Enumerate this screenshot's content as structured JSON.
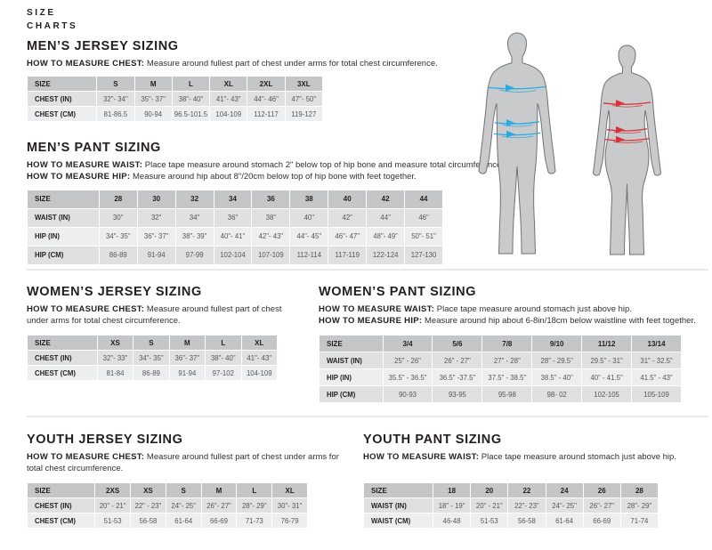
{
  "page": {
    "eyebrow_line1": "SIZE",
    "eyebrow_line2": "CHARTS"
  },
  "colors": {
    "table_header_bg": "#c5c6c8",
    "row_odd_bg": "#dfe0e2",
    "row_even_bg": "#edeeef",
    "silhouette_fill": "#c9cacc",
    "silhouette_stroke": "#717275",
    "male_arrow": "#29abe2",
    "female_arrow": "#d6333a",
    "divider": "#e8e9ea"
  },
  "figures": {
    "male_icon": "male-body-silhouette",
    "female_icon": "female-body-silhouette",
    "male_measure_lines": [
      "chest",
      "waist",
      "hip"
    ],
    "female_measure_lines": [
      "chest",
      "waist",
      "hip"
    ]
  },
  "sections": {
    "mens_jersey": {
      "heading": "MEN’S JERSEY SIZING",
      "howto": [
        {
          "label": "HOW TO MEASURE CHEST:",
          "text": "Measure around fullest part of chest under arms for total chest circumference."
        }
      ],
      "table": {
        "header": [
          "SIZE",
          "S",
          "M",
          "L",
          "XL",
          "2XL",
          "3XL"
        ],
        "rows": [
          [
            "CHEST (IN)",
            "32\"- 34\"",
            "35\"- 37\"",
            "38\"- 40\"",
            "41\"- 43\"",
            "44\"- 46\"",
            "47\"- 50\""
          ],
          [
            "CHEST (CM)",
            "81-86.5",
            "90-94",
            "96.5-101.5",
            "104-109",
            "112-117",
            "119-127"
          ]
        ]
      }
    },
    "mens_pant": {
      "heading": "MEN’S PANT SIZING",
      "howto": [
        {
          "label": "HOW TO MEASURE WAIST:",
          "text": "Place tape measure around stomach 2\" below top of hip bone and measure total circumference."
        },
        {
          "label": "HOW TO MEASURE HIP:",
          "text": "Measure around hip about 8\"/20cm below top of hip bone with feet together."
        }
      ],
      "table": {
        "header": [
          "SIZE",
          "28",
          "30",
          "32",
          "34",
          "36",
          "38",
          "40",
          "42",
          "44"
        ],
        "rows": [
          [
            "WAIST (IN)",
            "30\"",
            "32\"",
            "34\"",
            "36\"",
            "38\"",
            "40\"",
            "42\"",
            "44\"",
            "46\""
          ],
          [
            "HIP (IN)",
            "34\"- 35\"",
            "36\"- 37\"",
            "38\"- 39\"",
            "40\"- 41\"",
            "42\"- 43\"",
            "44\"- 45\"",
            "46\"- 47\"",
            "48\"- 49\"",
            "50\"- 51\""
          ],
          [
            "HIP (CM)",
            "86-89",
            "91-94",
            "97-99",
            "102-104",
            "107-109",
            "112-114",
            "117-119",
            "122-124",
            "127-130"
          ]
        ]
      }
    },
    "womens_jersey": {
      "heading": "WOMEN’S JERSEY SIZING",
      "howto": [
        {
          "label": "HOW TO MEASURE CHEST:",
          "text": "Measure around fullest part of chest under arms for total chest circumference."
        }
      ],
      "table": {
        "header": [
          "SIZE",
          "XS",
          "S",
          "M",
          "L",
          "XL"
        ],
        "rows": [
          [
            "CHEST (IN)",
            "32\"- 33\"",
            "34\"- 35\"",
            "36\"- 37\"",
            "38\"- 40\"",
            "41\"- 43\""
          ],
          [
            "CHEST (CM)",
            "81-84",
            "86-89",
            "91-94",
            "97-102",
            "104-109"
          ]
        ]
      }
    },
    "womens_pant": {
      "heading": "WOMEN’S PANT SIZING",
      "howto": [
        {
          "label": "HOW TO MEASURE WAIST:",
          "text": "Place tape measure around stomach just above hip."
        },
        {
          "label": "HOW TO MEASURE HIP:",
          "text": "Measure around hip about 6-8in/18cm below waistline with feet together."
        }
      ],
      "table": {
        "header": [
          "SIZE",
          "3/4",
          "5/6",
          "7/8",
          "9/10",
          "11/12",
          "13/14"
        ],
        "rows": [
          [
            "WAIST (IN)",
            "25\" - 26\"",
            "26\" - 27\"",
            "27\" - 28\"",
            "28\" - 29.5\"",
            "29.5\" - 31\"",
            "31\" - 32.5\""
          ],
          [
            "HIP (IN)",
            "35.5\" - 36.5\"",
            "36.5\" -37.5\"",
            "37.5\" - 38.5\"",
            "38.5\" - 40\"",
            "40\" - 41.5\"",
            "41.5\" - 43\""
          ],
          [
            "HIP (CM)",
            "90-93",
            "93-95",
            "95-98",
            "98- 02",
            "102-105",
            "105-109"
          ]
        ]
      }
    },
    "youth_jersey": {
      "heading": "YOUTH JERSEY SIZING",
      "howto": [
        {
          "label": "HOW TO MEASURE CHEST:",
          "text": "Measure around fullest part of chest under arms for total chest circumference."
        }
      ],
      "table": {
        "header": [
          "SIZE",
          "2XS",
          "XS",
          "S",
          "M",
          "L",
          "XL"
        ],
        "rows": [
          [
            "CHEST (IN)",
            "20\" - 21\"",
            "22\" - 23\"",
            "24\"- 25\"",
            "26\"- 27\"",
            "28\"- 29\"",
            "30\"- 31\""
          ],
          [
            "CHEST (CM)",
            "51-53",
            "56-58",
            "61-64",
            "66-69",
            "71-73",
            "76-79"
          ]
        ]
      }
    },
    "youth_pant": {
      "heading": "YOUTH PANT SIZING",
      "howto": [
        {
          "label": "HOW TO MEASURE WAIST:",
          "text": "Place tape measure around stomach just above hip."
        }
      ],
      "table": {
        "header": [
          "SIZE",
          "18",
          "20",
          "22",
          "24",
          "26",
          "28"
        ],
        "rows": [
          [
            "WAIST (IN)",
            "18\" - 19\"",
            "20\" - 21\"",
            "22\"- 23\"",
            "24\"- 25\"",
            "26\"- 27\"",
            "28\"- 29\""
          ],
          [
            "WAIST (CM)",
            "46-48",
            "51-53",
            "56-58",
            "61-64",
            "66-69",
            "71-74"
          ]
        ]
      }
    }
  }
}
